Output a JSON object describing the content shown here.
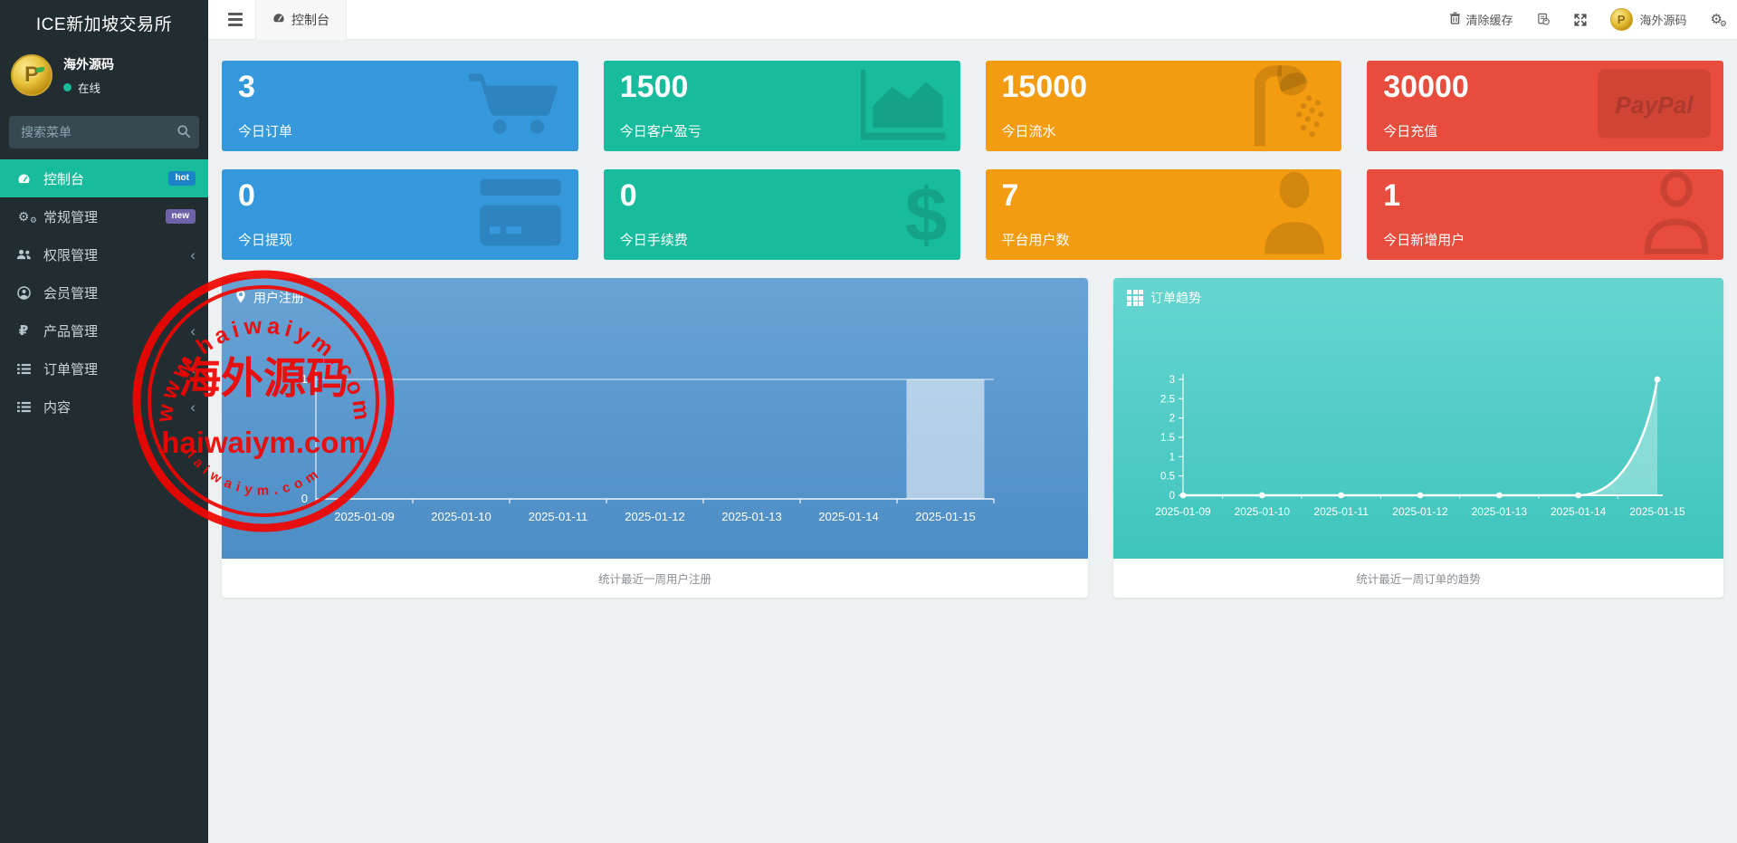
{
  "brand": {
    "title": "ICE新加坡交易所"
  },
  "sidebar": {
    "user": {
      "name": "海外源码",
      "status": "在线"
    },
    "search_placeholder": "搜索菜单",
    "items": [
      {
        "label": "控制台",
        "badge": "hot",
        "active": true
      },
      {
        "label": "常规管理",
        "badge": "new"
      },
      {
        "label": "权限管理",
        "chevron": true
      },
      {
        "label": "会员管理",
        "chevron": true
      },
      {
        "label": "产品管理",
        "chevron": true
      },
      {
        "label": "订单管理",
        "chevron": true
      },
      {
        "label": "内容",
        "chevron": true
      }
    ]
  },
  "navbar": {
    "tab": "控制台",
    "clear_cache": "清除缓存",
    "user_name": "海外源码"
  },
  "cards": [
    {
      "value": "3",
      "label": "今日订单",
      "color": "#3498db",
      "icon": "shopping-cart"
    },
    {
      "value": "1500",
      "label": "今日客户盈亏",
      "color": "#18bc9c",
      "icon": "area-chart"
    },
    {
      "value": "15000",
      "label": "今日流水",
      "color": "#f39c12",
      "icon": "shower"
    },
    {
      "value": "30000",
      "label": "今日充值",
      "color": "#e74c3c",
      "icon": "cc-paypal",
      "icon_text": "PayPal"
    },
    {
      "value": "0",
      "label": "今日提现",
      "color": "#3498db",
      "icon": "credit-card"
    },
    {
      "value": "0",
      "label": "今日手续费",
      "color": "#18bc9c",
      "icon": "dollar",
      "icon_text": "$"
    },
    {
      "value": "7",
      "label": "平台用户数",
      "color": "#f39c12",
      "icon": "user"
    },
    {
      "value": "1",
      "label": "今日新增用户",
      "color": "#e74c3c",
      "icon": "user-outline"
    }
  ],
  "chart_data": [
    {
      "type": "bar",
      "title": "用户注册",
      "caption": "统计最近一周用户注册",
      "categories": [
        "2025-01-09",
        "2025-01-10",
        "2025-01-11",
        "2025-01-12",
        "2025-01-13",
        "2025-01-14",
        "2025-01-15"
      ],
      "values": [
        0,
        0,
        0,
        0,
        0,
        0,
        1
      ],
      "ylim": [
        0,
        1
      ],
      "yticks": [
        0,
        1
      ],
      "grid": true,
      "panel_color_top": "#68a3d5",
      "panel_color_bottom": "#4d8dc5",
      "bar_color": "rgba(255,255,255,0.55)"
    },
    {
      "type": "area",
      "title": "订单趋势",
      "caption": "统计最近一周订单的趋势",
      "categories": [
        "2025-01-09",
        "2025-01-10",
        "2025-01-11",
        "2025-01-12",
        "2025-01-13",
        "2025-01-14",
        "2025-01-15"
      ],
      "values": [
        0,
        0,
        0,
        0,
        0,
        0,
        3
      ],
      "ylim": [
        0,
        3
      ],
      "yticks": [
        0,
        0.5,
        1,
        1.5,
        2,
        2.5,
        3
      ],
      "line_color": "#ffffff",
      "fill_color": "rgba(255,255,255,0.33)",
      "panel_color_top": "#66d5d0",
      "panel_color_bottom": "#3fc5bc"
    }
  ],
  "watermark": {
    "arc_top": "www.haiwaiym.com",
    "center_cn": "海外源码",
    "center_en": "haiwaiym.com",
    "arc_bottom": "haiwaiym.com",
    "color": "#f20500"
  },
  "colors": {
    "sidebar_bg": "#222d32",
    "active_menu": "#18bc9c",
    "badge_hot": "#1c84c6",
    "badge_new": "#6e62a8",
    "card_blue": "#3498db",
    "card_green": "#18bc9c",
    "card_orange": "#f39c12",
    "card_red": "#e74c3c"
  }
}
